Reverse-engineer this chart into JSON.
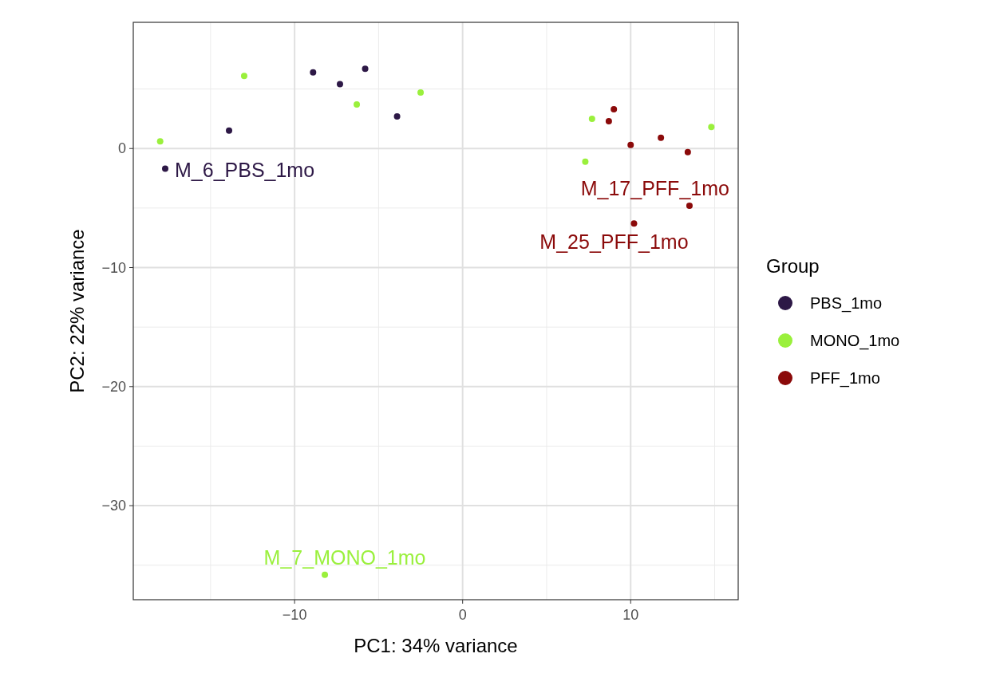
{
  "chart_data": {
    "type": "scatter",
    "xlabel": "PC1: 34% variance",
    "ylabel": "PC2: 22% variance",
    "legend_title": "Group",
    "legend": "right",
    "grid": true,
    "marker": "circle",
    "xlim": [
      -19.6,
      16.4
    ],
    "xticks": [
      -10,
      0,
      10
    ],
    "ylim": [
      -37.9,
      10.6
    ],
    "yticks": [
      -30,
      -20,
      -10,
      0
    ],
    "series": [
      {
        "name": "PBS_1mo",
        "color": "#2d1846",
        "x": [
          -17.7,
          -13.9,
          -8.9,
          -7.3,
          -5.8,
          -3.9
        ],
        "values": [
          -1.7,
          1.5,
          6.4,
          5.4,
          6.7,
          2.7
        ]
      },
      {
        "name": "MONO_1mo",
        "color": "#9af03c",
        "x": [
          -18.0,
          -13.0,
          -6.3,
          -2.5,
          -8.2,
          7.7,
          7.3,
          14.8
        ],
        "values": [
          0.6,
          6.1,
          3.7,
          4.7,
          -35.8,
          2.5,
          -1.1,
          1.8
        ]
      },
      {
        "name": "PFF_1mo",
        "color": "#8b0a0a",
        "x": [
          9.0,
          8.7,
          10.0,
          11.8,
          13.4,
          13.5,
          10.2
        ],
        "values": [
          3.3,
          2.3,
          0.3,
          0.9,
          -0.3,
          -4.8,
          -6.3
        ]
      }
    ],
    "annotations": [
      {
        "text": "M_6_PBS_1mo",
        "x": -17.7,
        "y": -1.7
      },
      {
        "text": "M_17_PFF_1mo",
        "x": 13.5,
        "y": -4.8
      },
      {
        "text": "M_25_PFF_1mo",
        "x": 10.2,
        "y": -6.3
      },
      {
        "text": "M_7_MONO_1mo",
        "x": -8.2,
        "y": -35.8
      }
    ]
  }
}
